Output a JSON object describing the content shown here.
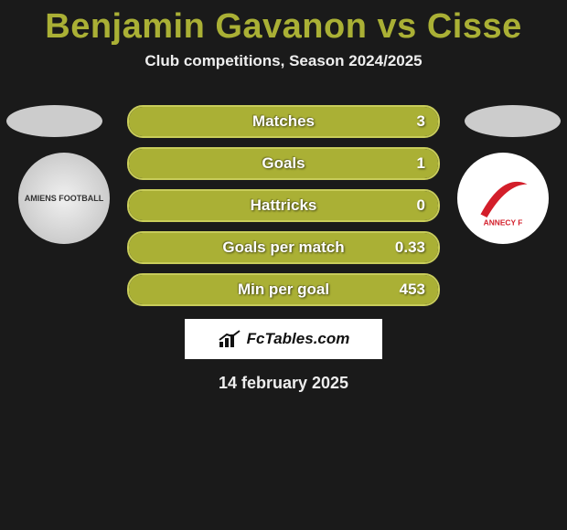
{
  "title": {
    "text": "Benjamin Gavanon vs Cisse",
    "color": "#aab035"
  },
  "subtitle": "Club competitions, Season 2024/2025",
  "bar_style": {
    "fill_color": "#aab035",
    "border_color": "#c8cc5a",
    "track_color": "#3a3a2a"
  },
  "stats": [
    {
      "label": "Matches",
      "value": "3",
      "fill_pct": 100
    },
    {
      "label": "Goals",
      "value": "1",
      "fill_pct": 100
    },
    {
      "label": "Hattricks",
      "value": "0",
      "fill_pct": 100
    },
    {
      "label": "Goals per match",
      "value": "0.33",
      "fill_pct": 100
    },
    {
      "label": "Min per goal",
      "value": "453",
      "fill_pct": 100
    }
  ],
  "flags": {
    "left_color": "#cccccc",
    "right_color": "#cccccc"
  },
  "clubs": {
    "left": {
      "name": "AMIENS FOOTBALL"
    },
    "right": {
      "name": "ANNECY FC",
      "swoosh_color": "#d31e2a"
    }
  },
  "brand": "FcTables.com",
  "date": "14 february 2025",
  "background_color": "#1a1a1a"
}
